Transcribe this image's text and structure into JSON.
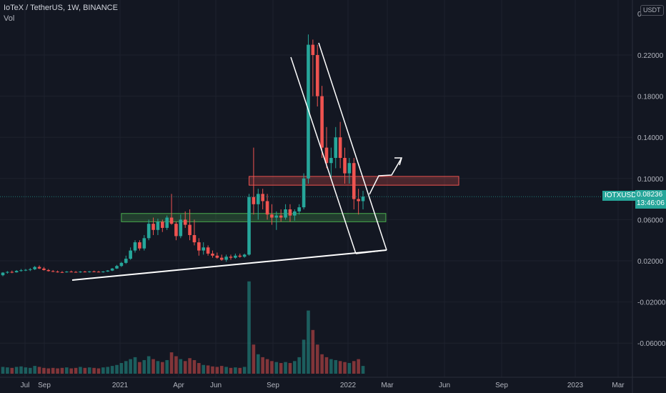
{
  "legend": {
    "title": "IoTeX / TetherUS, 1W, BINANCE",
    "vol_label": "Vol"
  },
  "price_scale": {
    "currency": "USDT",
    "ticks": [
      "0.22000",
      "0.18000",
      "0.14000",
      "0.10000",
      "0.06000",
      "0.02000",
      "-0.02000",
      "-0.06000"
    ],
    "top_label": "0"
  },
  "last_price": {
    "symbol": "IOTXUSDT",
    "price": "0.08236",
    "countdown": "13:46:06",
    "value": 0.08236
  },
  "time_axis": [
    "Jul",
    "Sep",
    "2021",
    "Apr",
    "Jun",
    "Sep",
    "2022",
    "Mar",
    "Jun",
    "Sep",
    "2023",
    "Mar"
  ],
  "colors": {
    "up": "#26a69a",
    "down": "#ef5350",
    "background": "#131722",
    "grid": "#1e222d",
    "zone_red": "#ef5350",
    "zone_green": "#4caf50",
    "drawing": "#ffffff"
  },
  "chart_data": {
    "type": "candlestick",
    "title": "IoTeX / TetherUS, 1W, BINANCE",
    "interval": "1W",
    "ylim": [
      -0.08,
      0.25
    ],
    "grid": true,
    "legend_position": "top-left",
    "candles": [
      [
        0.006,
        0.009,
        0.005,
        0.0085
      ],
      [
        0.0085,
        0.01,
        0.0075,
        0.0092
      ],
      [
        0.0092,
        0.0105,
        0.008,
        0.0088
      ],
      [
        0.0088,
        0.011,
        0.0085,
        0.0102
      ],
      [
        0.0102,
        0.012,
        0.0095,
        0.0108
      ],
      [
        0.0108,
        0.012,
        0.01,
        0.0112
      ],
      [
        0.0112,
        0.013,
        0.01,
        0.0118
      ],
      [
        0.0118,
        0.015,
        0.011,
        0.014
      ],
      [
        0.014,
        0.0155,
        0.012,
        0.0125
      ],
      [
        0.0125,
        0.014,
        0.0105,
        0.011
      ],
      [
        0.011,
        0.012,
        0.0095,
        0.01
      ],
      [
        0.01,
        0.011,
        0.009,
        0.0095
      ],
      [
        0.0095,
        0.0105,
        0.0085,
        0.009
      ],
      [
        0.009,
        0.01,
        0.0082,
        0.0088
      ],
      [
        0.0088,
        0.01,
        0.0085,
        0.0095
      ],
      [
        0.0095,
        0.0105,
        0.0088,
        0.0092
      ],
      [
        0.0092,
        0.01,
        0.0085,
        0.0088
      ],
      [
        0.0088,
        0.01,
        0.0084,
        0.0095
      ],
      [
        0.0095,
        0.0102,
        0.0088,
        0.0091
      ],
      [
        0.0091,
        0.01,
        0.0085,
        0.0097
      ],
      [
        0.0097,
        0.0105,
        0.009,
        0.0094
      ],
      [
        0.0094,
        0.0102,
        0.0088,
        0.009
      ],
      [
        0.009,
        0.01,
        0.0085,
        0.0096
      ],
      [
        0.0096,
        0.011,
        0.0092,
        0.0105
      ],
      [
        0.0105,
        0.013,
        0.01,
        0.0125
      ],
      [
        0.0125,
        0.016,
        0.012,
        0.015
      ],
      [
        0.015,
        0.019,
        0.014,
        0.018
      ],
      [
        0.018,
        0.025,
        0.017,
        0.022
      ],
      [
        0.022,
        0.033,
        0.021,
        0.03
      ],
      [
        0.03,
        0.04,
        0.028,
        0.038
      ],
      [
        0.038,
        0.04,
        0.03,
        0.032
      ],
      [
        0.032,
        0.045,
        0.03,
        0.042
      ],
      [
        0.042,
        0.06,
        0.04,
        0.056
      ],
      [
        0.056,
        0.062,
        0.045,
        0.05
      ],
      [
        0.05,
        0.061,
        0.045,
        0.058
      ],
      [
        0.058,
        0.06,
        0.048,
        0.052
      ],
      [
        0.052,
        0.064,
        0.05,
        0.062
      ],
      [
        0.062,
        0.085,
        0.055,
        0.056
      ],
      [
        0.056,
        0.058,
        0.04,
        0.044
      ],
      [
        0.044,
        0.065,
        0.042,
        0.06
      ],
      [
        0.06,
        0.068,
        0.052,
        0.055
      ],
      [
        0.055,
        0.07,
        0.04,
        0.045
      ],
      [
        0.045,
        0.06,
        0.035,
        0.038
      ],
      [
        0.038,
        0.042,
        0.025,
        0.03
      ],
      [
        0.03,
        0.038,
        0.026,
        0.033
      ],
      [
        0.033,
        0.035,
        0.025,
        0.027
      ],
      [
        0.027,
        0.03,
        0.023,
        0.025
      ],
      [
        0.025,
        0.028,
        0.022,
        0.023
      ],
      [
        0.023,
        0.026,
        0.02,
        0.021
      ],
      [
        0.021,
        0.026,
        0.019,
        0.024
      ],
      [
        0.024,
        0.026,
        0.021,
        0.023
      ],
      [
        0.023,
        0.027,
        0.022,
        0.025
      ],
      [
        0.025,
        0.027,
        0.023,
        0.024
      ],
      [
        0.024,
        0.027,
        0.023,
        0.026
      ],
      [
        0.026,
        0.085,
        0.025,
        0.082
      ],
      [
        0.082,
        0.13,
        0.065,
        0.075
      ],
      [
        0.075,
        0.09,
        0.06,
        0.085
      ],
      [
        0.085,
        0.09,
        0.07,
        0.078
      ],
      [
        0.078,
        0.085,
        0.06,
        0.065
      ],
      [
        0.065,
        0.075,
        0.055,
        0.062
      ],
      [
        0.062,
        0.068,
        0.05,
        0.064
      ],
      [
        0.064,
        0.07,
        0.058,
        0.062
      ],
      [
        0.062,
        0.075,
        0.06,
        0.07
      ],
      [
        0.07,
        0.075,
        0.058,
        0.064
      ],
      [
        0.064,
        0.07,
        0.059,
        0.068
      ],
      [
        0.068,
        0.075,
        0.065,
        0.072
      ],
      [
        0.072,
        0.105,
        0.07,
        0.1
      ],
      [
        0.1,
        0.24,
        0.095,
        0.23
      ],
      [
        0.23,
        0.235,
        0.18,
        0.22
      ],
      [
        0.22,
        0.23,
        0.17,
        0.18
      ],
      [
        0.18,
        0.19,
        0.12,
        0.13
      ],
      [
        0.13,
        0.15,
        0.11,
        0.115
      ],
      [
        0.115,
        0.13,
        0.1,
        0.12
      ],
      [
        0.12,
        0.15,
        0.11,
        0.14
      ],
      [
        0.14,
        0.155,
        0.11,
        0.12
      ],
      [
        0.12,
        0.13,
        0.095,
        0.105
      ],
      [
        0.105,
        0.12,
        0.095,
        0.115
      ],
      [
        0.115,
        0.12,
        0.07,
        0.08
      ],
      [
        0.08,
        0.09,
        0.065,
        0.078
      ],
      [
        0.078,
        0.088,
        0.07,
        0.0824
      ]
    ],
    "volume": [
      14,
      13,
      12,
      14,
      15,
      13,
      12,
      16,
      14,
      12,
      11,
      12,
      11,
      12,
      13,
      11,
      12,
      14,
      12,
      13,
      12,
      11,
      13,
      14,
      16,
      18,
      22,
      26,
      30,
      34,
      24,
      28,
      36,
      30,
      26,
      24,
      28,
      44,
      36,
      30,
      26,
      32,
      28,
      22,
      18,
      17,
      15,
      14,
      16,
      14,
      12,
      13,
      12,
      14,
      190,
      60,
      40,
      34,
      30,
      26,
      24,
      22,
      24,
      22,
      26,
      34,
      70,
      130,
      90,
      60,
      40,
      34,
      30,
      28,
      26,
      24,
      22,
      26,
      30,
      16
    ],
    "zones": [
      {
        "color": "red",
        "price_top": 0.102,
        "price_bottom": 0.0935,
        "from_candle": 54,
        "to_candle": 100
      },
      {
        "color": "green",
        "price_top": 0.066,
        "price_bottom": 0.058,
        "from_candle": 26,
        "to_candle": 84
      }
    ]
  }
}
